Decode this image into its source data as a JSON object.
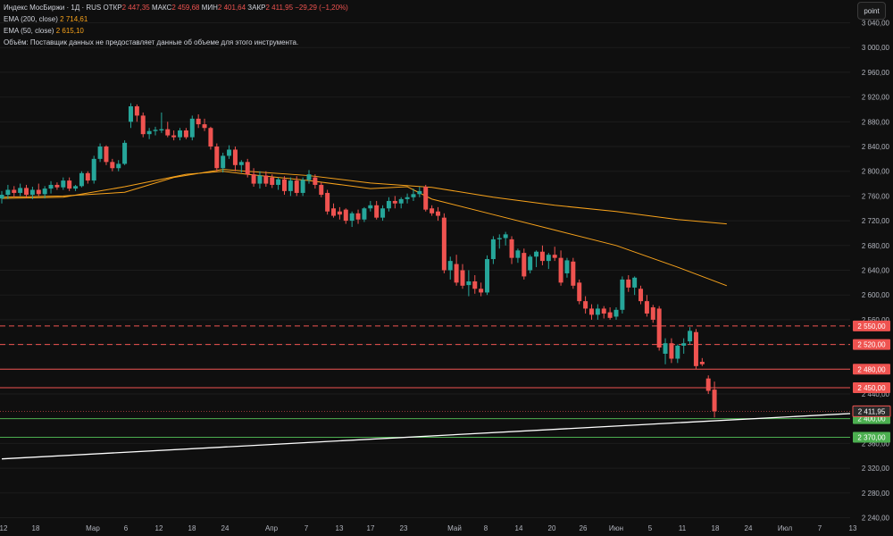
{
  "legend": {
    "title": "Индекс МосБиржи · 1Д · RUS",
    "open_label": "ОТКР",
    "open": "2 447,35",
    "high_label": "МАКС",
    "high": "2 459,68",
    "low_label": "МИН",
    "low": "2 401,64",
    "close_label": "ЗАКР",
    "close": "2 411,95",
    "change": "−29,29 (−1,20%)",
    "ema200_label": "EMA (200, close)",
    "ema200_value": "2 714,61",
    "ema50_label": "EMA (50, close)",
    "ema50_value": "2 615,10",
    "volume_note": "Объём: Поставщик данных не предоставляет данные об объеме для этого инструмента."
  },
  "toolbar": {
    "point_label": "point"
  },
  "colors": {
    "up": "#26a69a",
    "down": "#ef5350",
    "ema": "#f7a21b",
    "support": "#4caf50",
    "trend": "#ffffff",
    "bg": "#0f0f0f"
  },
  "chart_data": {
    "type": "candlestick",
    "y_range": [
      2220,
      3060
    ],
    "y_ticks": [
      "3 040,00",
      "3 000,00",
      "2 960,00",
      "2 920,00",
      "2 880,00",
      "2 840,00",
      "2 800,00",
      "2 760,00",
      "2 720,00",
      "2 680,00",
      "2 640,00",
      "2 600,00",
      "2 560,00",
      "2 520,00",
      "2 480,00",
      "2 440,00",
      "2 400,00",
      "2 360,00",
      "2 320,00",
      "2 280,00",
      "2 240,00"
    ],
    "x_ticks": [
      "12",
      "18",
      "Мар",
      "6",
      "12",
      "18",
      "24",
      "Апр",
      "7",
      "13",
      "17",
      "23",
      "Май",
      "8",
      "14",
      "20",
      "26",
      "Июн",
      "5",
      "11",
      "18",
      "24",
      "Июл",
      "7",
      "13"
    ],
    "levels": [
      {
        "value": 2550,
        "label": "2 550,00",
        "style": "dashed",
        "color": "#ef5350"
      },
      {
        "value": 2520,
        "label": "2 520,00",
        "style": "dashed",
        "color": "#ef5350"
      },
      {
        "value": 2480,
        "label": "2 480,00",
        "style": "solid",
        "color": "#ef5350"
      },
      {
        "value": 2450,
        "label": "2 450,00",
        "style": "solid",
        "color": "#ef5350"
      },
      {
        "value": 2400,
        "label": "2 400,00",
        "style": "solid",
        "color": "#4caf50"
      },
      {
        "value": 2370,
        "label": "2 370,00",
        "style": "solid",
        "color": "#4caf50"
      }
    ],
    "last_price": {
      "value": 2411.95,
      "label": "2 411,95"
    },
    "trendline": [
      [
        0,
        2335
      ],
      [
        141,
        2412
      ]
    ],
    "ema200": [
      [
        0,
        2758
      ],
      [
        10,
        2760
      ],
      [
        20,
        2766
      ],
      [
        28,
        2790
      ],
      [
        36,
        2803
      ],
      [
        40,
        2800
      ],
      [
        50,
        2793
      ],
      [
        60,
        2781
      ],
      [
        70,
        2774
      ],
      [
        80,
        2758
      ],
      [
        90,
        2745
      ],
      [
        100,
        2735
      ],
      [
        110,
        2722
      ],
      [
        118,
        2715
      ]
    ],
    "ema50": [
      [
        0,
        2756
      ],
      [
        10,
        2758
      ],
      [
        20,
        2775
      ],
      [
        30,
        2795
      ],
      [
        36,
        2800
      ],
      [
        40,
        2795
      ],
      [
        50,
        2785
      ],
      [
        60,
        2772
      ],
      [
        66,
        2775
      ],
      [
        70,
        2755
      ],
      [
        80,
        2730
      ],
      [
        90,
        2705
      ],
      [
        100,
        2680
      ],
      [
        110,
        2645
      ],
      [
        118,
        2615
      ]
    ],
    "candles": [
      {
        "o": 2756,
        "h": 2768,
        "l": 2748,
        "c": 2762
      },
      {
        "o": 2762,
        "h": 2778,
        "l": 2755,
        "c": 2770
      },
      {
        "o": 2770,
        "h": 2776,
        "l": 2758,
        "c": 2765
      },
      {
        "o": 2765,
        "h": 2780,
        "l": 2760,
        "c": 2773
      },
      {
        "o": 2773,
        "h": 2778,
        "l": 2757,
        "c": 2762
      },
      {
        "o": 2762,
        "h": 2775,
        "l": 2755,
        "c": 2770
      },
      {
        "o": 2770,
        "h": 2780,
        "l": 2760,
        "c": 2763
      },
      {
        "o": 2763,
        "h": 2776,
        "l": 2756,
        "c": 2772
      },
      {
        "o": 2772,
        "h": 2784,
        "l": 2764,
        "c": 2778
      },
      {
        "o": 2778,
        "h": 2782,
        "l": 2770,
        "c": 2774
      },
      {
        "o": 2774,
        "h": 2790,
        "l": 2770,
        "c": 2785
      },
      {
        "o": 2785,
        "h": 2790,
        "l": 2768,
        "c": 2772
      },
      {
        "o": 2772,
        "h": 2778,
        "l": 2768,
        "c": 2776
      },
      {
        "o": 2776,
        "h": 2800,
        "l": 2774,
        "c": 2797
      },
      {
        "o": 2797,
        "h": 2800,
        "l": 2780,
        "c": 2785
      },
      {
        "o": 2785,
        "h": 2825,
        "l": 2780,
        "c": 2820
      },
      {
        "o": 2820,
        "h": 2845,
        "l": 2815,
        "c": 2840
      },
      {
        "o": 2840,
        "h": 2842,
        "l": 2810,
        "c": 2815
      },
      {
        "o": 2815,
        "h": 2820,
        "l": 2800,
        "c": 2805
      },
      {
        "o": 2805,
        "h": 2818,
        "l": 2800,
        "c": 2812
      },
      {
        "o": 2812,
        "h": 2850,
        "l": 2810,
        "c": 2846
      },
      {
        "o": 2880,
        "h": 2910,
        "l": 2870,
        "c": 2905
      },
      {
        "o": 2905,
        "h": 2908,
        "l": 2880,
        "c": 2890
      },
      {
        "o": 2890,
        "h": 2895,
        "l": 2855,
        "c": 2860
      },
      {
        "o": 2860,
        "h": 2870,
        "l": 2852,
        "c": 2865
      },
      {
        "o": 2865,
        "h": 2872,
        "l": 2858,
        "c": 2867
      },
      {
        "o": 2866,
        "h": 2895,
        "l": 2862,
        "c": 2868
      },
      {
        "o": 2868,
        "h": 2880,
        "l": 2855,
        "c": 2858
      },
      {
        "o": 2858,
        "h": 2866,
        "l": 2850,
        "c": 2855
      },
      {
        "o": 2855,
        "h": 2870,
        "l": 2850,
        "c": 2866
      },
      {
        "o": 2866,
        "h": 2870,
        "l": 2852,
        "c": 2855
      },
      {
        "o": 2855,
        "h": 2890,
        "l": 2850,
        "c": 2885
      },
      {
        "o": 2885,
        "h": 2892,
        "l": 2870,
        "c": 2876
      },
      {
        "o": 2876,
        "h": 2885,
        "l": 2865,
        "c": 2870
      },
      {
        "o": 2870,
        "h": 2872,
        "l": 2835,
        "c": 2840
      },
      {
        "o": 2840,
        "h": 2845,
        "l": 2800,
        "c": 2805
      },
      {
        "o": 2805,
        "h": 2830,
        "l": 2798,
        "c": 2825
      },
      {
        "o": 2825,
        "h": 2842,
        "l": 2820,
        "c": 2835
      },
      {
        "o": 2835,
        "h": 2840,
        "l": 2800,
        "c": 2810
      },
      {
        "o": 2810,
        "h": 2818,
        "l": 2798,
        "c": 2815
      },
      {
        "o": 2815,
        "h": 2820,
        "l": 2790,
        "c": 2795
      },
      {
        "o": 2795,
        "h": 2805,
        "l": 2775,
        "c": 2780
      },
      {
        "o": 2780,
        "h": 2800,
        "l": 2772,
        "c": 2793
      },
      {
        "o": 2793,
        "h": 2800,
        "l": 2775,
        "c": 2780
      },
      {
        "o": 2790,
        "h": 2795,
        "l": 2773,
        "c": 2778
      },
      {
        "o": 2778,
        "h": 2790,
        "l": 2770,
        "c": 2787
      },
      {
        "o": 2787,
        "h": 2792,
        "l": 2762,
        "c": 2768
      },
      {
        "o": 2768,
        "h": 2790,
        "l": 2760,
        "c": 2785
      },
      {
        "o": 2785,
        "h": 2792,
        "l": 2760,
        "c": 2765
      },
      {
        "o": 2765,
        "h": 2790,
        "l": 2760,
        "c": 2786
      },
      {
        "o": 2786,
        "h": 2802,
        "l": 2780,
        "c": 2795
      },
      {
        "o": 2790,
        "h": 2795,
        "l": 2772,
        "c": 2778
      },
      {
        "o": 2778,
        "h": 2782,
        "l": 2758,
        "c": 2762
      },
      {
        "o": 2765,
        "h": 2770,
        "l": 2730,
        "c": 2735
      },
      {
        "o": 2740,
        "h": 2748,
        "l": 2725,
        "c": 2728
      },
      {
        "o": 2735,
        "h": 2742,
        "l": 2722,
        "c": 2730
      },
      {
        "o": 2738,
        "h": 2740,
        "l": 2715,
        "c": 2720
      },
      {
        "o": 2720,
        "h": 2735,
        "l": 2710,
        "c": 2732
      },
      {
        "o": 2732,
        "h": 2738,
        "l": 2715,
        "c": 2722
      },
      {
        "o": 2722,
        "h": 2742,
        "l": 2718,
        "c": 2740
      },
      {
        "o": 2740,
        "h": 2752,
        "l": 2735,
        "c": 2745
      },
      {
        "o": 2745,
        "h": 2752,
        "l": 2722,
        "c": 2725
      },
      {
        "o": 2725,
        "h": 2745,
        "l": 2720,
        "c": 2740
      },
      {
        "o": 2740,
        "h": 2758,
        "l": 2735,
        "c": 2752
      },
      {
        "o": 2752,
        "h": 2760,
        "l": 2740,
        "c": 2748
      },
      {
        "o": 2748,
        "h": 2758,
        "l": 2740,
        "c": 2755
      },
      {
        "o": 2755,
        "h": 2764,
        "l": 2748,
        "c": 2758
      },
      {
        "o": 2758,
        "h": 2772,
        "l": 2752,
        "c": 2763
      },
      {
        "o": 2763,
        "h": 2775,
        "l": 2758,
        "c": 2768
      },
      {
        "o": 2775,
        "h": 2778,
        "l": 2735,
        "c": 2738
      },
      {
        "o": 2740,
        "h": 2745,
        "l": 2728,
        "c": 2732
      },
      {
        "o": 2735,
        "h": 2742,
        "l": 2720,
        "c": 2728
      },
      {
        "o": 2725,
        "h": 2732,
        "l": 2635,
        "c": 2640
      },
      {
        "o": 2640,
        "h": 2662,
        "l": 2625,
        "c": 2655
      },
      {
        "o": 2650,
        "h": 2665,
        "l": 2615,
        "c": 2620
      },
      {
        "o": 2640,
        "h": 2650,
        "l": 2610,
        "c": 2615
      },
      {
        "o": 2616,
        "h": 2640,
        "l": 2598,
        "c": 2622
      },
      {
        "o": 2622,
        "h": 2632,
        "l": 2602,
        "c": 2610
      },
      {
        "o": 2610,
        "h": 2620,
        "l": 2598,
        "c": 2604
      },
      {
        "o": 2604,
        "h": 2664,
        "l": 2600,
        "c": 2658
      },
      {
        "o": 2658,
        "h": 2695,
        "l": 2650,
        "c": 2690
      },
      {
        "o": 2690,
        "h": 2698,
        "l": 2675,
        "c": 2692
      },
      {
        "o": 2692,
        "h": 2702,
        "l": 2680,
        "c": 2698
      },
      {
        "o": 2690,
        "h": 2695,
        "l": 2650,
        "c": 2660
      },
      {
        "o": 2660,
        "h": 2675,
        "l": 2652,
        "c": 2672
      },
      {
        "o": 2668,
        "h": 2675,
        "l": 2625,
        "c": 2630
      },
      {
        "o": 2640,
        "h": 2665,
        "l": 2635,
        "c": 2662
      },
      {
        "o": 2662,
        "h": 2672,
        "l": 2645,
        "c": 2670
      },
      {
        "o": 2670,
        "h": 2680,
        "l": 2648,
        "c": 2655
      },
      {
        "o": 2655,
        "h": 2668,
        "l": 2642,
        "c": 2665
      },
      {
        "o": 2665,
        "h": 2678,
        "l": 2655,
        "c": 2660
      },
      {
        "o": 2660,
        "h": 2672,
        "l": 2615,
        "c": 2620
      },
      {
        "o": 2635,
        "h": 2660,
        "l": 2628,
        "c": 2656
      },
      {
        "o": 2654,
        "h": 2660,
        "l": 2610,
        "c": 2615
      },
      {
        "o": 2620,
        "h": 2625,
        "l": 2585,
        "c": 2590
      },
      {
        "o": 2590,
        "h": 2598,
        "l": 2570,
        "c": 2578
      },
      {
        "o": 2578,
        "h": 2585,
        "l": 2560,
        "c": 2568
      },
      {
        "o": 2568,
        "h": 2585,
        "l": 2560,
        "c": 2578
      },
      {
        "o": 2578,
        "h": 2582,
        "l": 2562,
        "c": 2570
      },
      {
        "o": 2572,
        "h": 2580,
        "l": 2560,
        "c": 2563
      },
      {
        "o": 2565,
        "h": 2580,
        "l": 2560,
        "c": 2576
      },
      {
        "o": 2576,
        "h": 2630,
        "l": 2570,
        "c": 2625
      },
      {
        "o": 2625,
        "h": 2632,
        "l": 2605,
        "c": 2612
      },
      {
        "o": 2612,
        "h": 2630,
        "l": 2600,
        "c": 2628
      },
      {
        "o": 2610,
        "h": 2615,
        "l": 2585,
        "c": 2590
      },
      {
        "o": 2590,
        "h": 2600,
        "l": 2565,
        "c": 2570
      },
      {
        "o": 2580,
        "h": 2584,
        "l": 2555,
        "c": 2560
      },
      {
        "o": 2578,
        "h": 2582,
        "l": 2510,
        "c": 2515
      },
      {
        "o": 2505,
        "h": 2530,
        "l": 2488,
        "c": 2522
      },
      {
        "o": 2522,
        "h": 2530,
        "l": 2490,
        "c": 2497
      },
      {
        "o": 2497,
        "h": 2520,
        "l": 2490,
        "c": 2518
      },
      {
        "o": 2518,
        "h": 2530,
        "l": 2505,
        "c": 2522
      },
      {
        "o": 2525,
        "h": 2548,
        "l": 2520,
        "c": 2542
      },
      {
        "o": 2540,
        "h": 2545,
        "l": 2480,
        "c": 2485
      },
      {
        "o": 2492,
        "h": 2498,
        "l": 2485,
        "c": 2488
      },
      {
        "o": 2465,
        "h": 2470,
        "l": 2440,
        "c": 2445
      },
      {
        "o": 2447,
        "h": 2460,
        "l": 2402,
        "c": 2412
      }
    ]
  }
}
